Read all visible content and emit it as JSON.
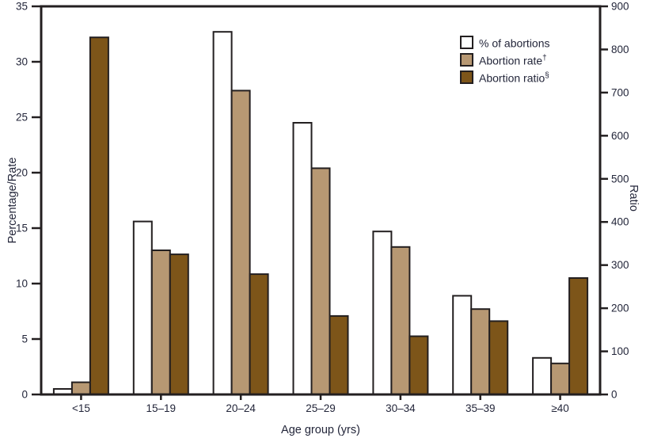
{
  "chart_data": {
    "type": "bar",
    "title": "",
    "xlabel": "Age group (yrs)",
    "grid": false,
    "legend_position": "top-right-inside",
    "background_color": "#ffffff",
    "axis_line_color": "#231f20",
    "bar_outline_color": "#231f20",
    "text_color": "#23263a",
    "categories": [
      "<15",
      "15–19",
      "20–24",
      "25–29",
      "30–34",
      "35–39",
      "≥40"
    ],
    "series": [
      {
        "name": "% of abortions",
        "sup": "",
        "axis": "left",
        "color": "#ffffff",
        "values": [
          0.5,
          15.6,
          32.7,
          24.5,
          14.7,
          8.9,
          3.3
        ]
      },
      {
        "name": "Abortion rate",
        "sup": "†",
        "axis": "left",
        "color": "#b79873",
        "values": [
          1.1,
          13.0,
          27.4,
          20.4,
          13.3,
          7.7,
          2.8
        ]
      },
      {
        "name": "Abortion ratio",
        "sup": "§",
        "axis": "right",
        "color": "#7d5519",
        "values": [
          828,
          325,
          279,
          182,
          135,
          170,
          270
        ]
      }
    ],
    "left_axis": {
      "label": "Percentage/Rate",
      "min": 0,
      "max": 35,
      "tick_step": 5,
      "ticks": [
        0,
        5,
        10,
        15,
        20,
        25,
        30,
        35
      ]
    },
    "right_axis": {
      "label": "Ratio",
      "min": 0,
      "max": 900,
      "tick_step": 100,
      "ticks": [
        0,
        100,
        200,
        300,
        400,
        500,
        600,
        700,
        800,
        900
      ]
    }
  }
}
